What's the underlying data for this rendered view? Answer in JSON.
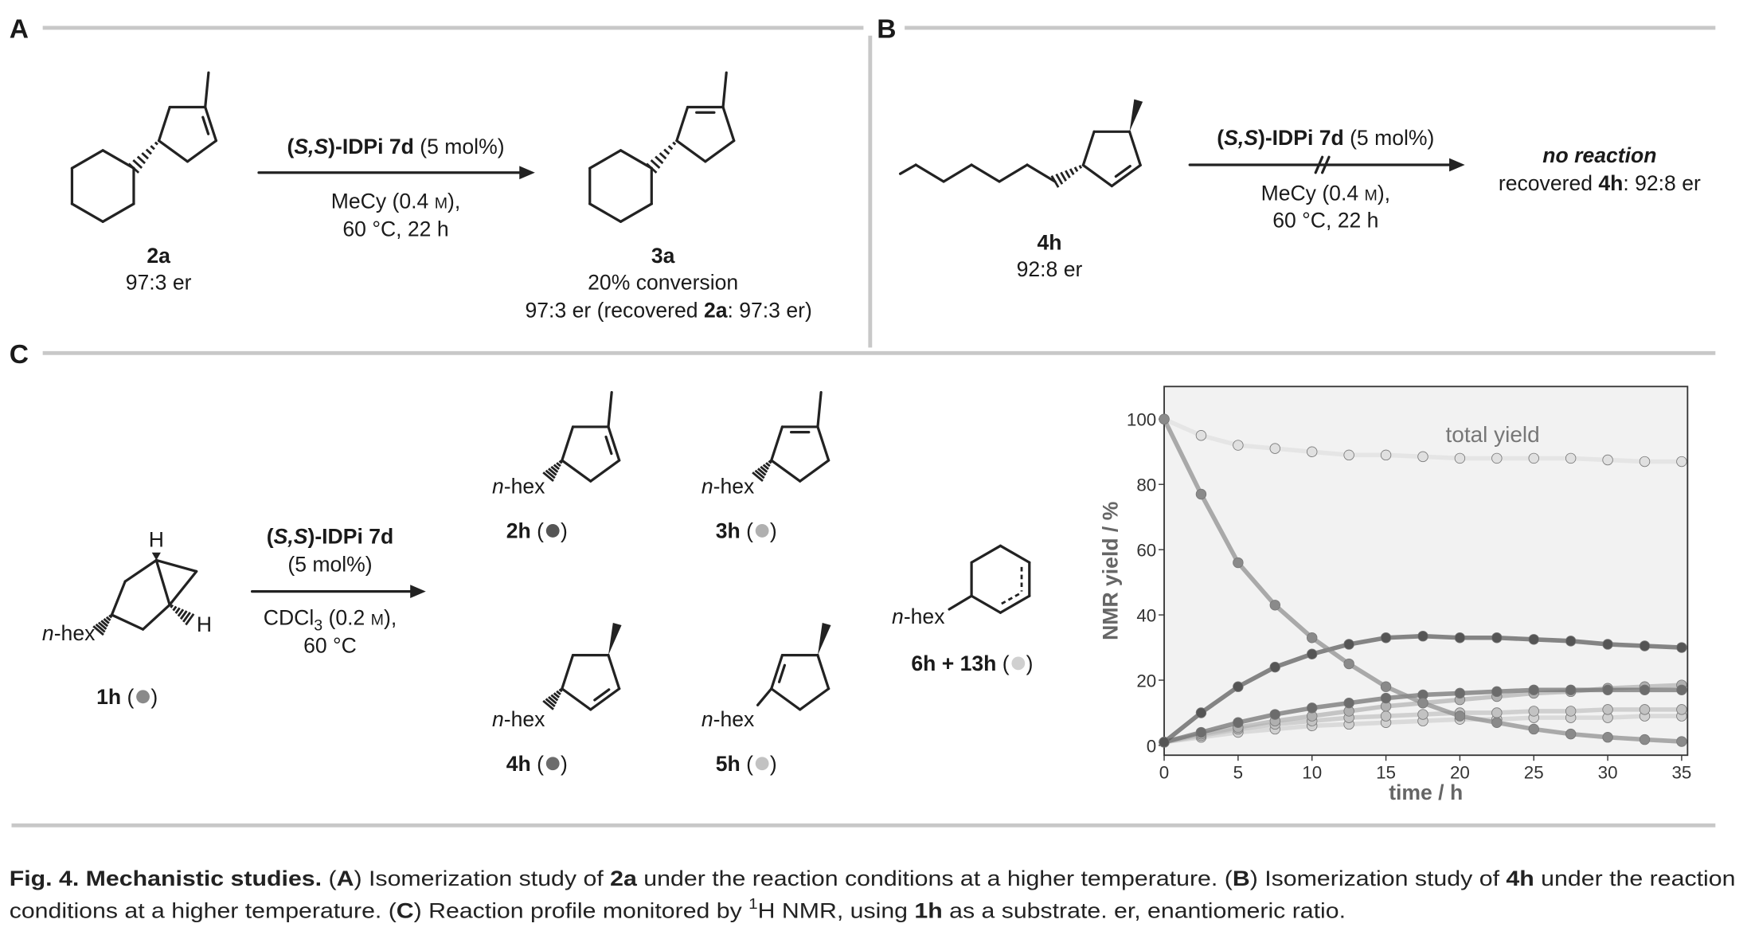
{
  "panel_a": {
    "label": "A",
    "catalyst": [
      "(",
      "S,S",
      ")-IDPi 7d",
      " (5 mol%)"
    ],
    "conditions_line1": [
      "MeCy (0.4 ",
      "M",
      "),"
    ],
    "conditions_line2": "60 °C, 22 h",
    "substrate": {
      "id": "2a",
      "er": "97:3 er"
    },
    "product": {
      "id": "3a",
      "conversion": "20% conversion",
      "er": [
        "97:3 er (recovered ",
        "2a",
        ": 97:3 er)"
      ]
    }
  },
  "panel_b": {
    "label": "B",
    "catalyst": [
      "(",
      "S,S",
      ")-IDPi 7d",
      " (5 mol%)"
    ],
    "conditions_line1": [
      "MeCy (0.4 ",
      "M",
      "),"
    ],
    "conditions_line2": "60 °C, 22 h",
    "substrate": {
      "id": "4h",
      "er": "92:8 er"
    },
    "result": {
      "title": "no reaction",
      "recovered": [
        "recovered ",
        "4h",
        ": 92:8 er"
      ]
    }
  },
  "panel_c": {
    "label": "C",
    "substituent": [
      "n",
      "-hex"
    ],
    "hydrogen": "H",
    "catalyst_line1": [
      "(",
      "S,S",
      ")-IDPi 7d"
    ],
    "catalyst_line2": "(5 mol%)",
    "conditions_line1": [
      "CDCl",
      "3",
      " (0.2 ",
      "M",
      "),"
    ],
    "conditions_line2": "60 °C",
    "paren_open": " (",
    "paren_close": ")"
  },
  "chart_data": {
    "type": "scatter",
    "x": [
      0,
      2.5,
      5,
      7.5,
      10,
      12.5,
      15,
      17.5,
      20,
      22.5,
      25,
      27.5,
      30,
      32.5,
      35
    ],
    "series": [
      {
        "name": "1h",
        "color": "#8a8a8a",
        "values": [
          100,
          77,
          56,
          43,
          33,
          25,
          18,
          13,
          9,
          7,
          5,
          3.5,
          2.5,
          1.8,
          1.2
        ]
      },
      {
        "name": "2h",
        "color": "#555555",
        "values": [
          1,
          10,
          18,
          24,
          28,
          31,
          33,
          33.5,
          33,
          33,
          32.5,
          32,
          31,
          30.5,
          30
        ]
      },
      {
        "name": "4h",
        "color": "#6c6c6c",
        "values": [
          1,
          4,
          7,
          9.5,
          11.5,
          13,
          14.5,
          15.5,
          16,
          16.5,
          17,
          17,
          17,
          17,
          17
        ]
      },
      {
        "name": "3h",
        "color": "#b0b0b0",
        "values": [
          1,
          3.5,
          5.5,
          7.5,
          9,
          10.5,
          12,
          13,
          14,
          15,
          16,
          16.5,
          17.5,
          18,
          18.5
        ]
      },
      {
        "name": "5h",
        "color": "#c2c2c2",
        "values": [
          1,
          3,
          5,
          6.5,
          7.5,
          8.5,
          9,
          9.5,
          10,
          10,
          10.5,
          10.5,
          11,
          11,
          11
        ]
      },
      {
        "name": "6h + 13h",
        "color": "#d0d0d0",
        "values": [
          1,
          2.5,
          4,
          5,
          6,
          6.5,
          7,
          7.5,
          8,
          8,
          8.5,
          8.5,
          8.5,
          9,
          9
        ]
      },
      {
        "name": "total yield",
        "color": "#e0e0e0",
        "values": [
          100,
          95,
          92,
          91,
          90,
          89,
          89,
          88.5,
          88,
          88,
          88,
          88,
          87.5,
          87,
          87
        ]
      }
    ],
    "xlim": [
      0,
      35.4
    ],
    "ylim": [
      -3,
      110
    ],
    "xticks": [
      0,
      5,
      10,
      15,
      20,
      25,
      30,
      35
    ],
    "yticks": [
      0,
      20,
      40,
      60,
      80,
      100
    ],
    "xlabel": "time / h",
    "ylabel": "NMR yield / %"
  },
  "caption": {
    "line1": [
      "Fig. 4. Mechanistic studies.",
      " (",
      "A",
      ") Isomerization study of ",
      "2a",
      " under the reaction conditions at a higher temperature. (",
      "B",
      ") Isomerization study of ",
      "4h",
      " under the reaction"
    ],
    "line2": [
      "conditions at a higher temperature. (",
      "C",
      ") Reaction profile monitored by ",
      "1",
      "H NMR, using ",
      "1h",
      " as a substrate. er, enantiomeric ratio."
    ]
  }
}
